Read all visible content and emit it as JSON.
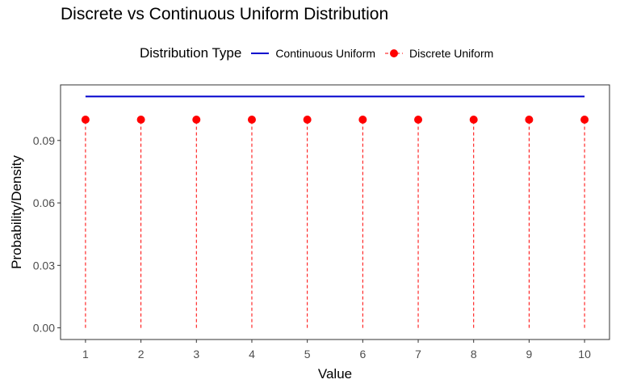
{
  "chart_data": {
    "type": "line",
    "title": "Discrete vs Continuous Uniform Distribution",
    "xlabel": "Value",
    "ylabel": "Probability/Density",
    "xlim": [
      0.55,
      10.45
    ],
    "ylim": [
      -0.0056,
      0.1167
    ],
    "x_ticks": [
      1,
      2,
      3,
      4,
      5,
      6,
      7,
      8,
      9,
      10
    ],
    "y_ticks": [
      0.0,
      0.03,
      0.06,
      0.09
    ],
    "y_tick_labels": [
      "0.00",
      "0.03",
      "0.06",
      "0.09"
    ],
    "grid": false,
    "legend_title": "Distribution Type",
    "legend_position": "top",
    "series": [
      {
        "name": "Continuous Uniform",
        "style": "solid-line",
        "color": "#0000CD",
        "x": [
          1,
          10
        ],
        "values": [
          0.1111,
          0.1111
        ]
      },
      {
        "name": "Discrete Uniform",
        "style": "points-with-dashed-segments",
        "color": "#FF0000",
        "x": [
          1,
          2,
          3,
          4,
          5,
          6,
          7,
          8,
          9,
          10
        ],
        "values": [
          0.1,
          0.1,
          0.1,
          0.1,
          0.1,
          0.1,
          0.1,
          0.1,
          0.1,
          0.1
        ]
      }
    ]
  }
}
